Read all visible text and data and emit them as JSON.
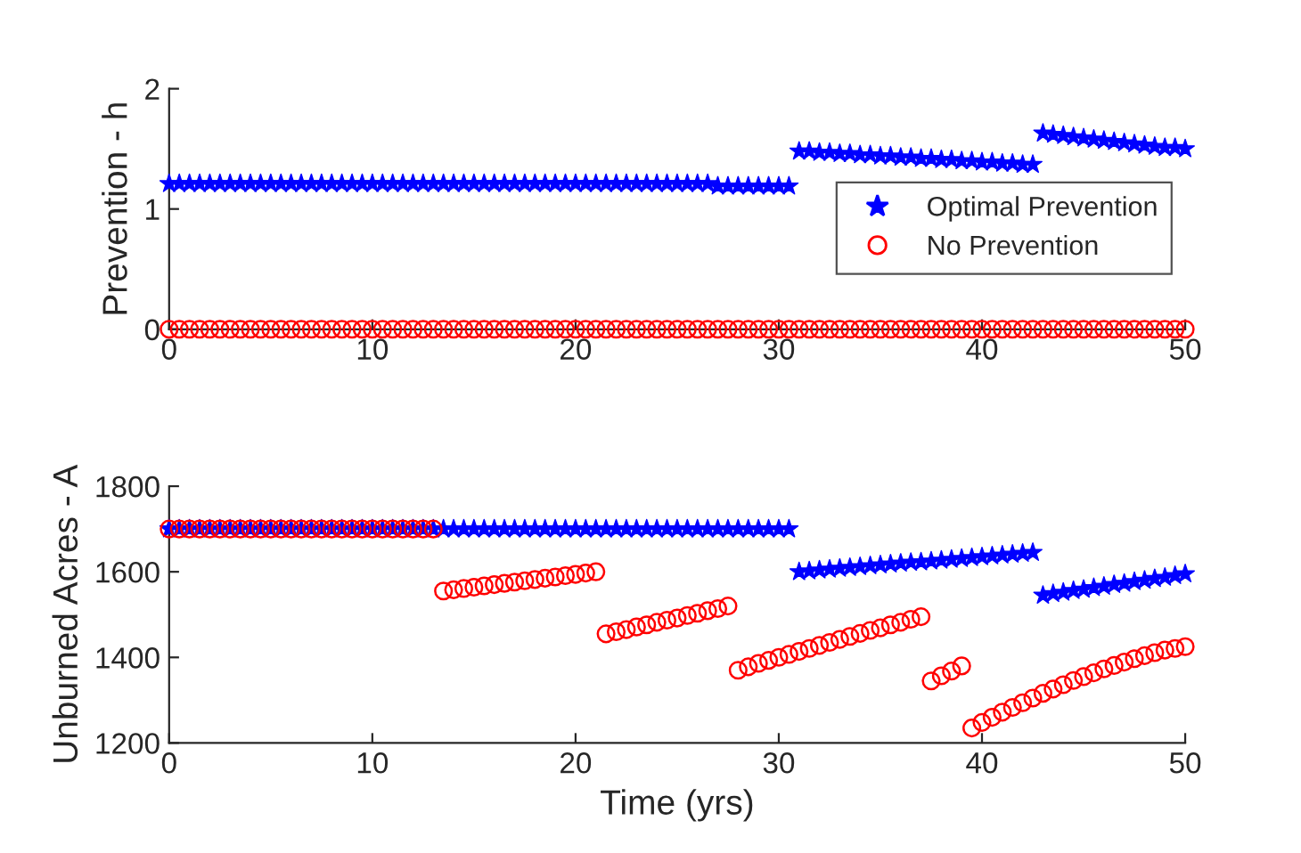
{
  "chart_data": [
    {
      "type": "scatter",
      "ylabel": "Prevention - h",
      "x": [
        0,
        0.5,
        1,
        1.5,
        2,
        2.5,
        3,
        3.5,
        4,
        4.5,
        5,
        5.5,
        6,
        6.5,
        7,
        7.5,
        8,
        8.5,
        9,
        9.5,
        10,
        10.5,
        11,
        11.5,
        12,
        12.5,
        13,
        13.5,
        14,
        14.5,
        15,
        15.5,
        16,
        16.5,
        17,
        17.5,
        18,
        18.5,
        19,
        19.5,
        20,
        20.5,
        21,
        21.5,
        22,
        22.5,
        23,
        23.5,
        24,
        24.5,
        25,
        25.5,
        26,
        26.5,
        27,
        27.5,
        28,
        28.5,
        29,
        29.5,
        30,
        30.5,
        31,
        31.5,
        32,
        32.5,
        33,
        33.5,
        34,
        34.5,
        35,
        35.5,
        36,
        36.5,
        37,
        37.5,
        38,
        38.5,
        39,
        39.5,
        40,
        40.5,
        41,
        41.5,
        42,
        42.5,
        43,
        43.5,
        44,
        44.5,
        45,
        45.5,
        46,
        46.5,
        47,
        47.5,
        48,
        48.5,
        49,
        49.5,
        50
      ],
      "series": [
        {
          "name": "Optimal Prevention",
          "color": "#0000ff",
          "marker": "star",
          "values": [
            1.21,
            1.21,
            1.21,
            1.21,
            1.21,
            1.21,
            1.21,
            1.21,
            1.21,
            1.21,
            1.21,
            1.21,
            1.21,
            1.21,
            1.21,
            1.21,
            1.21,
            1.21,
            1.21,
            1.21,
            1.21,
            1.21,
            1.21,
            1.21,
            1.21,
            1.21,
            1.21,
            1.21,
            1.21,
            1.21,
            1.21,
            1.21,
            1.21,
            1.21,
            1.21,
            1.21,
            1.21,
            1.21,
            1.21,
            1.21,
            1.21,
            1.21,
            1.21,
            1.21,
            1.21,
            1.21,
            1.21,
            1.21,
            1.21,
            1.21,
            1.21,
            1.21,
            1.21,
            1.21,
            1.19,
            1.19,
            1.19,
            1.19,
            1.19,
            1.19,
            1.19,
            1.19,
            1.48,
            1.48,
            1.47,
            1.47,
            1.46,
            1.46,
            1.45,
            1.45,
            1.44,
            1.44,
            1.43,
            1.43,
            1.42,
            1.42,
            1.41,
            1.41,
            1.4,
            1.4,
            1.39,
            1.39,
            1.38,
            1.38,
            1.37,
            1.37,
            1.63,
            1.62,
            1.61,
            1.6,
            1.59,
            1.58,
            1.57,
            1.56,
            1.55,
            1.54,
            1.53,
            1.52,
            1.51,
            1.51,
            1.5
          ]
        },
        {
          "name": "No Prevention",
          "color": "#ff0000",
          "marker": "circle",
          "values": [
            0,
            0,
            0,
            0,
            0,
            0,
            0,
            0,
            0,
            0,
            0,
            0,
            0,
            0,
            0,
            0,
            0,
            0,
            0,
            0,
            0,
            0,
            0,
            0,
            0,
            0,
            0,
            0,
            0,
            0,
            0,
            0,
            0,
            0,
            0,
            0,
            0,
            0,
            0,
            0,
            0,
            0,
            0,
            0,
            0,
            0,
            0,
            0,
            0,
            0,
            0,
            0,
            0,
            0,
            0,
            0,
            0,
            0,
            0,
            0,
            0,
            0,
            0,
            0,
            0,
            0,
            0,
            0,
            0,
            0,
            0,
            0,
            0,
            0,
            0,
            0,
            0,
            0,
            0,
            0,
            0,
            0,
            0,
            0,
            0,
            0,
            0,
            0,
            0,
            0,
            0,
            0,
            0,
            0,
            0,
            0,
            0,
            0,
            0,
            0,
            0
          ]
        }
      ],
      "xlim": [
        0,
        50
      ],
      "xticks": [
        0,
        10,
        20,
        30,
        40,
        50
      ],
      "ylim": [
        0,
        2
      ],
      "yticks": [
        0,
        1,
        2
      ],
      "legend": "right",
      "grid": false
    },
    {
      "type": "scatter",
      "ylabel": "Unburned Acres - A",
      "xlabel": "Time (yrs)",
      "x": [
        0,
        0.5,
        1,
        1.5,
        2,
        2.5,
        3,
        3.5,
        4,
        4.5,
        5,
        5.5,
        6,
        6.5,
        7,
        7.5,
        8,
        8.5,
        9,
        9.5,
        10,
        10.5,
        11,
        11.5,
        12,
        12.5,
        13,
        13.5,
        14,
        14.5,
        15,
        15.5,
        16,
        16.5,
        17,
        17.5,
        18,
        18.5,
        19,
        19.5,
        20,
        20.5,
        21,
        21.5,
        22,
        22.5,
        23,
        23.5,
        24,
        24.5,
        25,
        25.5,
        26,
        26.5,
        27,
        27.5,
        28,
        28.5,
        29,
        29.5,
        30,
        30.5,
        31,
        31.5,
        32,
        32.5,
        33,
        33.5,
        34,
        34.5,
        35,
        35.5,
        36,
        36.5,
        37,
        37.5,
        38,
        38.5,
        39,
        39.5,
        40,
        40.5,
        41,
        41.5,
        42,
        42.5,
        43,
        43.5,
        44,
        44.5,
        45,
        45.5,
        46,
        46.5,
        47,
        47.5,
        48,
        48.5,
        49,
        49.5,
        50
      ],
      "series": [
        {
          "color": "#0000ff",
          "marker": "star",
          "values": [
            1700,
            1700,
            1700,
            1700,
            1700,
            1700,
            1700,
            1700,
            1700,
            1700,
            1700,
            1700,
            1700,
            1700,
            1700,
            1700,
            1700,
            1700,
            1700,
            1700,
            1700,
            1700,
            1700,
            1700,
            1700,
            1700,
            1700,
            1700,
            1700,
            1700,
            1700,
            1700,
            1700,
            1700,
            1700,
            1700,
            1700,
            1700,
            1700,
            1700,
            1700,
            1700,
            1700,
            1700,
            1700,
            1700,
            1700,
            1700,
            1700,
            1700,
            1700,
            1700,
            1700,
            1700,
            1700,
            1700,
            1700,
            1700,
            1700,
            1700,
            1700,
            1700,
            1600,
            1602,
            1604,
            1606,
            1608,
            1610,
            1612,
            1614,
            1616,
            1618,
            1620,
            1622,
            1623,
            1625,
            1627,
            1629,
            1631,
            1633,
            1635,
            1637,
            1639,
            1641,
            1643,
            1645,
            1545,
            1549,
            1552,
            1556,
            1559,
            1563,
            1566,
            1570,
            1573,
            1577,
            1580,
            1584,
            1587,
            1591,
            1595
          ]
        },
        {
          "color": "#ff0000",
          "marker": "circle",
          "values": [
            1700,
            1700,
            1700,
            1700,
            1700,
            1700,
            1700,
            1700,
            1700,
            1700,
            1700,
            1700,
            1700,
            1700,
            1700,
            1700,
            1700,
            1700,
            1700,
            1700,
            1700,
            1700,
            1700,
            1700,
            1700,
            1700,
            1700,
            1555,
            1558,
            1561,
            1564,
            1567,
            1570,
            1573,
            1576,
            1579,
            1582,
            1585,
            1588,
            1591,
            1594,
            1597,
            1600,
            1455,
            1460,
            1465,
            1471,
            1476,
            1482,
            1487,
            1492,
            1498,
            1503,
            1509,
            1514,
            1520,
            1370,
            1378,
            1386,
            1393,
            1400,
            1407,
            1414,
            1421,
            1428,
            1435,
            1442,
            1449,
            1456,
            1463,
            1469,
            1476,
            1482,
            1489,
            1495,
            1345,
            1357,
            1368,
            1380,
            1235,
            1248,
            1260,
            1272,
            1283,
            1294,
            1305,
            1316,
            1326,
            1336,
            1346,
            1355,
            1364,
            1373,
            1381,
            1389,
            1397,
            1404,
            1411,
            1417,
            1421,
            1425
          ]
        }
      ],
      "xlim": [
        0,
        50
      ],
      "xticks": [
        0,
        10,
        20,
        30,
        40,
        50
      ],
      "ylim": [
        1200,
        1800
      ],
      "yticks": [
        1200,
        1400,
        1600,
        1800
      ],
      "grid": false
    }
  ]
}
